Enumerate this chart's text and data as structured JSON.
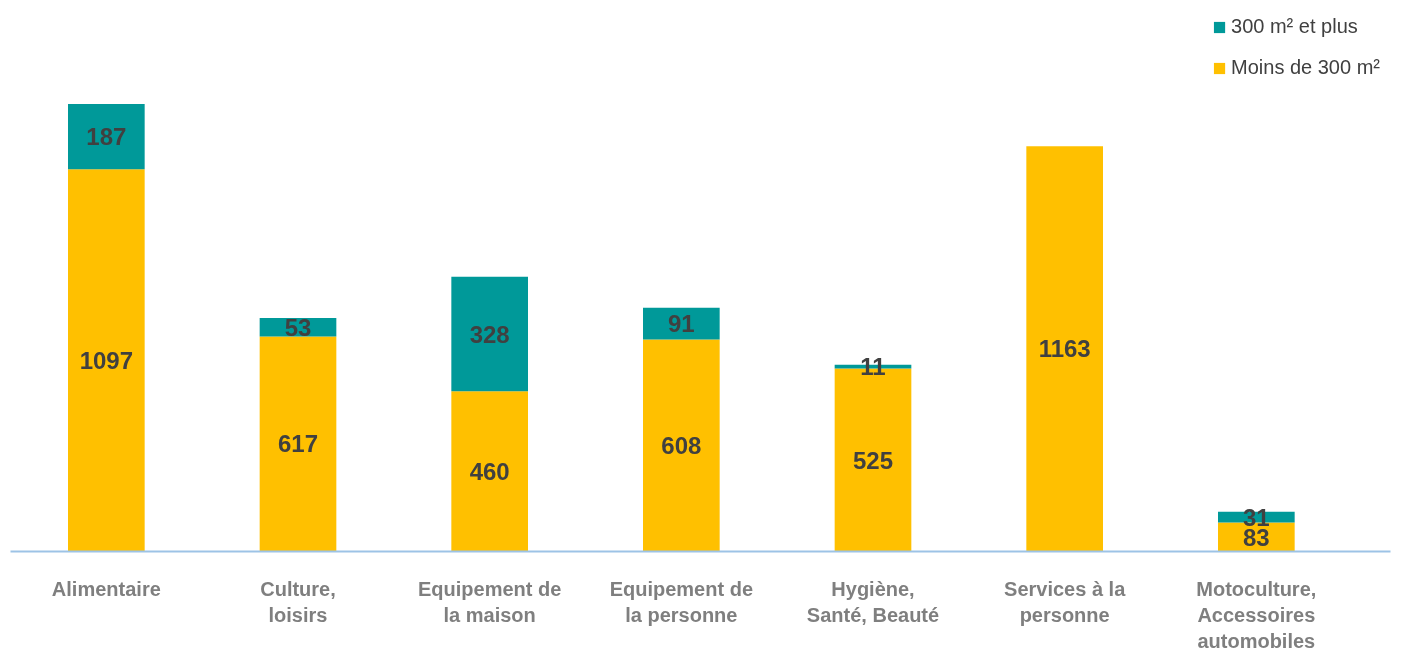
{
  "chart_data": {
    "type": "bar",
    "stacked": true,
    "data_labels": true,
    "legend": "top right",
    "grid": false,
    "categories": [
      "Alimentaire",
      "Culture, loisirs",
      "Equipement de la maison",
      "Equipement de la personne",
      "Hygiène, Santé, Beauté",
      "Services à la personne",
      "Motoculture, Accessoires automobiles"
    ],
    "series": [
      {
        "name": "Moins de 300 m²",
        "color": "#ffc000",
        "values": [
          1097,
          617,
          460,
          608,
          525,
          1163,
          83
        ]
      },
      {
        "name": "300 m² et plus",
        "color": "#009999",
        "values": [
          187,
          53,
          328,
          91,
          11,
          null,
          31
        ]
      }
    ]
  }
}
